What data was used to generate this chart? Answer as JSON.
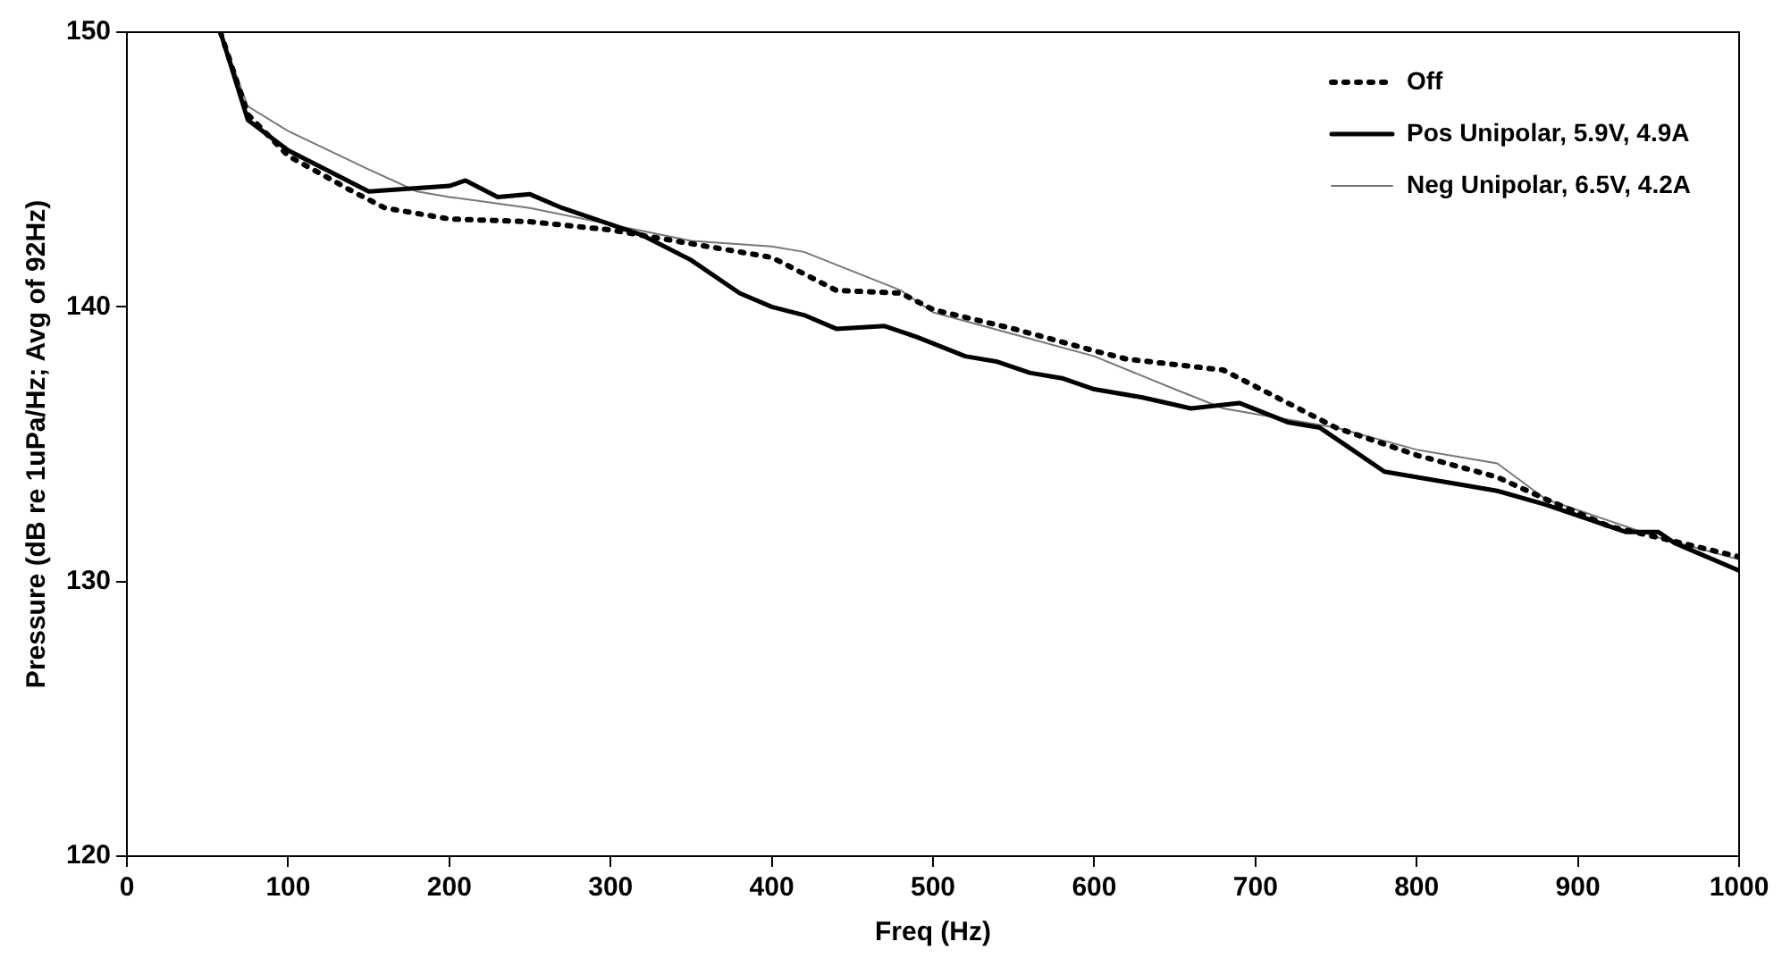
{
  "chart_data": {
    "type": "line",
    "xlabel": "Freq (Hz)",
    "ylabel": "Pressure (dB re 1uPa/Hz; Avg of 92Hz)",
    "xlim": [
      0,
      1000
    ],
    "xticks": [
      0,
      100,
      200,
      300,
      400,
      500,
      600,
      700,
      800,
      900,
      1000
    ],
    "ylim": [
      120,
      150
    ],
    "yticks": [
      120,
      130,
      140,
      150
    ],
    "grid": false,
    "legend": "top right",
    "marker": "none",
    "series": [
      {
        "name": "Off",
        "color": "#000000",
        "line_style": "dotted",
        "x": [
          58,
          75,
          100,
          140,
          160,
          200,
          250,
          300,
          330,
          350,
          380,
          400,
          420,
          440,
          480,
          500,
          550,
          600,
          620,
          650,
          680,
          700,
          750,
          800,
          850,
          880,
          920,
          950,
          1000
        ],
        "values": [
          150,
          147.0,
          145.5,
          144.2,
          143.6,
          143.2,
          143.1,
          142.8,
          142.5,
          142.3,
          142.0,
          141.8,
          141.2,
          140.6,
          140.5,
          139.9,
          139.2,
          138.4,
          138.1,
          137.9,
          137.7,
          137.1,
          135.6,
          134.6,
          133.8,
          133.0,
          132.0,
          131.6,
          130.9
        ]
      },
      {
        "name": "Pos Unipolar, 5.9V, 4.9A",
        "color": "#000000",
        "line_style": "solid",
        "x": [
          58,
          75,
          100,
          150,
          200,
          210,
          230,
          250,
          270,
          300,
          320,
          350,
          380,
          400,
          420,
          440,
          470,
          490,
          520,
          540,
          560,
          580,
          600,
          630,
          660,
          690,
          720,
          740,
          760,
          780,
          820,
          850,
          880,
          910,
          930,
          950,
          960,
          1000
        ],
        "values": [
          150,
          146.8,
          145.7,
          144.2,
          144.4,
          144.6,
          144.0,
          144.1,
          143.6,
          143.0,
          142.6,
          141.7,
          140.5,
          140.0,
          139.7,
          139.2,
          139.3,
          138.9,
          138.2,
          138.0,
          137.6,
          137.4,
          137.0,
          136.7,
          136.3,
          136.5,
          135.8,
          135.6,
          134.8,
          134.0,
          133.6,
          133.3,
          132.8,
          132.2,
          131.8,
          131.8,
          131.4,
          130.4
        ]
      },
      {
        "name": "Neg Unipolar, 6.5V, 4.2A",
        "color": "#777777",
        "line_style": "solid",
        "x": [
          58,
          75,
          100,
          150,
          180,
          200,
          250,
          300,
          350,
          400,
          420,
          450,
          480,
          500,
          550,
          600,
          650,
          680,
          700,
          750,
          800,
          850,
          880,
          900,
          950,
          1000
        ],
        "values": [
          150,
          147.3,
          146.4,
          145.0,
          144.2,
          144.0,
          143.6,
          143.0,
          142.4,
          142.2,
          142.0,
          141.3,
          140.6,
          139.8,
          139.0,
          138.2,
          137.0,
          136.3,
          136.1,
          135.6,
          134.8,
          134.3,
          133.0,
          132.6,
          131.6,
          130.8
        ]
      }
    ]
  }
}
